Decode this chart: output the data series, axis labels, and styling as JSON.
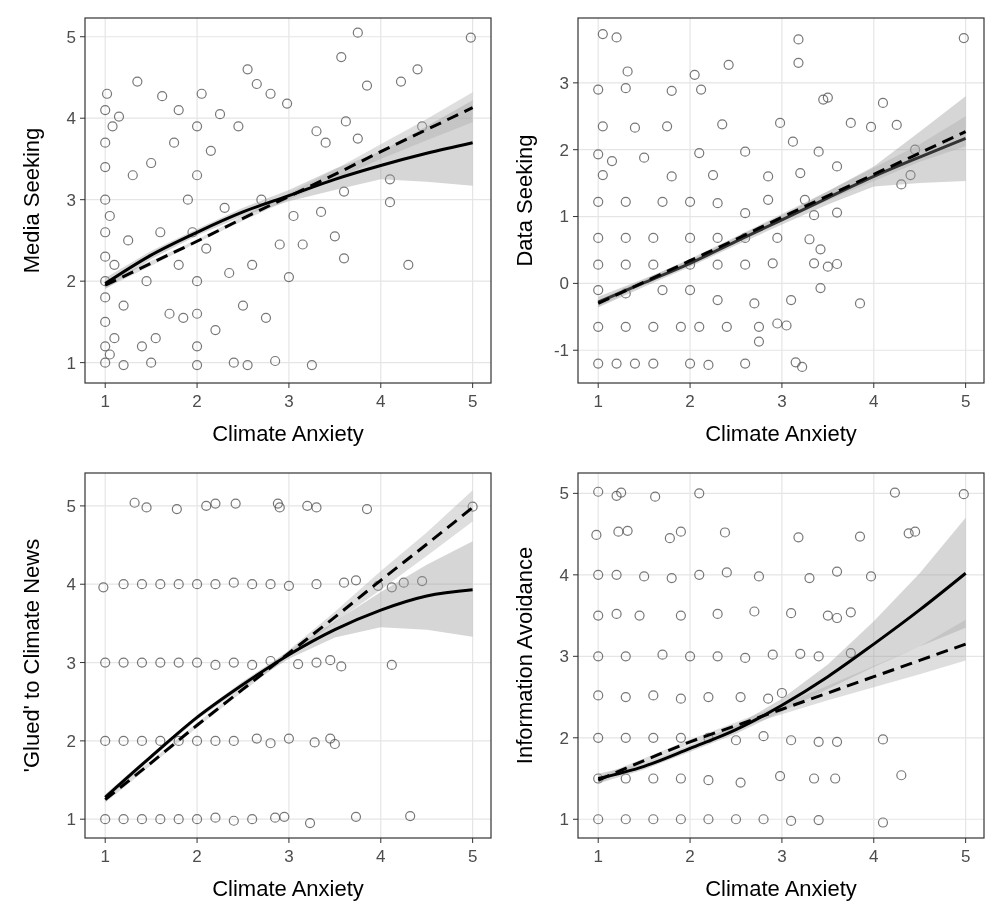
{
  "chart_data": [
    {
      "type": "scatter",
      "xlabel": "Climate Anxiety",
      "ylabel": "Media Seeking",
      "xlim": [
        0.78,
        5.2
      ],
      "ylim": [
        0.75,
        5.23
      ],
      "xticks": [
        1,
        2,
        3,
        4,
        5
      ],
      "yticks": [
        1,
        2,
        3,
        4,
        5
      ],
      "grid": true,
      "series": [
        {
          "type": "scatter",
          "marker": "circle",
          "color": "#555555",
          "x": [
            1,
            1,
            1,
            1,
            1,
            1,
            1,
            1,
            1,
            1,
            1,
            1.02,
            1.05,
            1.05,
            1.08,
            1.1,
            1.1,
            1.15,
            1.2,
            1.2,
            1.25,
            1.3,
            1.35,
            1.4,
            1.45,
            1.5,
            1.5,
            1.55,
            1.6,
            1.62,
            1.7,
            1.75,
            1.8,
            1.8,
            1.85,
            1.9,
            1.95,
            2,
            2,
            2,
            2,
            2,
            2,
            2.05,
            2.1,
            2.15,
            2.2,
            2.25,
            2.3,
            2.35,
            2.4,
            2.45,
            2.5,
            2.55,
            2.55,
            2.6,
            2.65,
            2.7,
            2.75,
            2.8,
            2.85,
            2.9,
            2.98,
            3,
            3.05,
            3.15,
            3.25,
            3.3,
            3.35,
            3.4,
            3.5,
            3.57,
            3.6,
            3.6,
            3.62,
            3.75,
            3.75,
            3.85,
            4.1,
            4.1,
            4.22,
            4.3,
            4.4,
            4.45,
            4.98
          ],
          "values": [
            1,
            1.2,
            1.5,
            1.8,
            2,
            2.3,
            2.6,
            3,
            3.4,
            3.7,
            4.1,
            4.3,
            1.1,
            2.8,
            3.9,
            1.3,
            2.2,
            4.02,
            0.97,
            1.7,
            2.5,
            3.3,
            4.45,
            1.2,
            2,
            1,
            3.45,
            1.3,
            2.6,
            4.27,
            1.6,
            3.7,
            2.2,
            4.1,
            1.55,
            3,
            2.6,
            0.97,
            1.2,
            1.6,
            2,
            3.3,
            3.9,
            4.3,
            2.4,
            3.6,
            1.4,
            4.05,
            2.9,
            2.1,
            1,
            3.9,
            1.7,
            4.6,
            0.97,
            2.2,
            4.42,
            3,
            1.55,
            4.3,
            1.02,
            2.45,
            4.18,
            2.05,
            2.8,
            2.45,
            0.97,
            3.84,
            2.85,
            3.7,
            2.55,
            4.75,
            2.28,
            3.1,
            3.96,
            5.05,
            3.75,
            4.4,
            3.25,
            2.97,
            4.45,
            2.2,
            4.6,
            3.9,
            4.99
          ]
        },
        {
          "type": "line",
          "marker": "none",
          "line_style": "solid",
          "color": "#000000",
          "x": [
            1,
            1.5,
            2,
            2.5,
            3,
            3.5,
            4,
            4.5,
            5
          ],
          "values": [
            1.97,
            2.32,
            2.6,
            2.85,
            3.05,
            3.25,
            3.42,
            3.57,
            3.7
          ],
          "lower": [
            1.9,
            2.27,
            2.56,
            2.8,
            2.98,
            3.12,
            3.25,
            3.22,
            3.17
          ],
          "upper": [
            2.04,
            2.37,
            2.64,
            2.9,
            3.12,
            3.38,
            3.59,
            3.9,
            4.22
          ]
        },
        {
          "type": "line",
          "marker": "none",
          "line_style": "dashed",
          "color": "#000000",
          "x": [
            1,
            1.5,
            2,
            2.5,
            3,
            3.5,
            4,
            4.5,
            5
          ],
          "values": [
            1.95,
            2.22,
            2.49,
            2.77,
            3.04,
            3.31,
            3.59,
            3.86,
            4.13
          ],
          "lower": [
            1.91,
            2.19,
            2.47,
            2.74,
            3,
            3.25,
            3.5,
            3.73,
            3.95
          ],
          "upper": [
            1.99,
            2.25,
            2.51,
            2.8,
            3.08,
            3.37,
            3.68,
            3.99,
            4.32
          ]
        }
      ]
    },
    {
      "type": "scatter",
      "xlabel": "Climate Anxiety",
      "ylabel": "Data Seeking",
      "xlim": [
        0.78,
        5.2
      ],
      "ylim": [
        -1.49,
        3.97
      ],
      "xticks": [
        1,
        2,
        3,
        4,
        5
      ],
      "yticks": [
        -1,
        0,
        1,
        2,
        3
      ],
      "grid": true,
      "series": [
        {
          "type": "scatter",
          "marker": "circle",
          "color": "#555555",
          "x": [
            1,
            1.2,
            1.4,
            1.6,
            2,
            2.2,
            2.6,
            3.15,
            3.22,
            1,
            1.3,
            1.6,
            1.9,
            2.1,
            2.4,
            2.75,
            2.95,
            3.05,
            2.75,
            1,
            1.3,
            1.7,
            2,
            2.3,
            2.7,
            3.1,
            3.42,
            3.85,
            1,
            1.3,
            1.6,
            2,
            2.3,
            2.6,
            2.9,
            3.35,
            3.5,
            3.6,
            1,
            1.3,
            1.6,
            2,
            2.3,
            2.6,
            2.95,
            3.3,
            3.42,
            1,
            1.3,
            1.7,
            2,
            2.3,
            2.6,
            2.85,
            3.25,
            3.35,
            3.6,
            1,
            1.05,
            1.05,
            1.15,
            1.4,
            1.5,
            1.75,
            1.8,
            2.1,
            2.25,
            2.35,
            2.6,
            2.85,
            2.98,
            3.12,
            3.2,
            3.4,
            3.6,
            3.75,
            3.97,
            4.25,
            4.3,
            4.45,
            4.4,
            4.1,
            1,
            1.05,
            1.2,
            1.32,
            1.3,
            1.8,
            2.05,
            2.12,
            2.42,
            3.18,
            3.18,
            3.45,
            3.5,
            4.98
          ],
          "values": [
            -1.2,
            -1.2,
            -1.2,
            -1.2,
            -1.2,
            -1.22,
            -1.2,
            -1.18,
            -1.25,
            -0.65,
            -0.65,
            -0.65,
            -0.65,
            -0.65,
            -0.65,
            -0.65,
            -0.6,
            -0.63,
            -0.87,
            -0.1,
            -0.15,
            -0.1,
            -0.1,
            -0.25,
            -0.3,
            -0.25,
            -0.07,
            -0.3,
            0.28,
            0.28,
            0.28,
            0.28,
            0.28,
            0.28,
            0.3,
            0.3,
            0.25,
            0.29,
            0.68,
            0.68,
            0.68,
            0.68,
            0.68,
            0.68,
            0.68,
            0.66,
            0.51,
            1.22,
            1.22,
            1.22,
            1.22,
            1.2,
            1.05,
            1.25,
            1.25,
            1.02,
            1.06,
            1.93,
            2.35,
            1.62,
            1.83,
            2.33,
            1.88,
            2.35,
            1.6,
            1.95,
            1.62,
            2.38,
            1.97,
            1.6,
            2.4,
            2.12,
            1.65,
            1.97,
            1.75,
            2.4,
            2.34,
            2.37,
            1.48,
            2,
            1.62,
            2.7,
            2.9,
            3.73,
            3.68,
            3.17,
            2.92,
            2.88,
            3.12,
            2.9,
            3.27,
            3.65,
            3.3,
            2.75,
            2.78,
            3.67
          ]
        },
        {
          "type": "line",
          "marker": "none",
          "line_style": "solid",
          "color": "#333333",
          "x": [
            1,
            1.5,
            2,
            2.5,
            3,
            3.5,
            4,
            4.5,
            5
          ],
          "values": [
            -0.28,
            0.01,
            0.3,
            0.63,
            0.95,
            1.28,
            1.6,
            1.89,
            2.17
          ],
          "lower": [
            -0.36,
            -0.05,
            0.25,
            0.57,
            0.88,
            1.18,
            1.45,
            1.5,
            1.53
          ],
          "upper": [
            -0.2,
            0.07,
            0.35,
            0.69,
            1.02,
            1.38,
            1.75,
            2.27,
            2.8
          ]
        },
        {
          "type": "line",
          "marker": "none",
          "line_style": "dashed",
          "color": "#000000",
          "x": [
            1,
            1.5,
            2,
            2.5,
            3,
            3.5,
            4,
            4.5,
            5
          ],
          "values": [
            -0.3,
            0.02,
            0.34,
            0.66,
            0.99,
            1.31,
            1.63,
            1.95,
            2.27
          ],
          "lower": [
            -0.35,
            -0.02,
            0.31,
            0.62,
            0.94,
            1.24,
            1.53,
            1.82,
            2.05
          ],
          "upper": [
            -0.25,
            0.06,
            0.37,
            0.7,
            1.04,
            1.38,
            1.73,
            2.08,
            2.5
          ]
        }
      ]
    },
    {
      "type": "scatter",
      "xlabel": "Climate Anxiety",
      "ylabel": "'Glued' to Climate News",
      "xlim": [
        0.78,
        5.2
      ],
      "ylim": [
        0.76,
        5.42
      ],
      "xticks": [
        1,
        2,
        3,
        4,
        5
      ],
      "yticks": [
        1,
        2,
        3,
        4,
        5
      ],
      "grid": true,
      "series": [
        {
          "type": "scatter",
          "marker": "circle",
          "color": "#555555",
          "x": [
            1,
            1.2,
            1.4,
            1.6,
            1.8,
            2,
            2.2,
            2.4,
            2.6,
            2.85,
            2.95,
            3.23,
            3.73,
            4.32,
            1,
            1.2,
            1.4,
            1.6,
            1.8,
            2,
            2.2,
            2.4,
            2.65,
            2.8,
            3,
            3.28,
            3.45,
            3.5,
            1,
            1.2,
            1.4,
            1.6,
            1.8,
            2,
            2.2,
            2.4,
            2.6,
            2.8,
            3.1,
            3.3,
            3.45,
            3.57,
            4.12,
            0.98,
            1.2,
            1.4,
            1.6,
            1.8,
            2,
            2.2,
            2.4,
            2.6,
            2.8,
            3,
            3.3,
            3.6,
            3.73,
            3.97,
            4.12,
            4.25,
            4.45,
            1.32,
            1.45,
            1.78,
            2.1,
            2.2,
            2.42,
            2.88,
            2.9,
            3.2,
            3.3,
            3.85,
            5
          ],
          "values": [
            1,
            1,
            1,
            1,
            1,
            1,
            1.02,
            0.98,
            1,
            1.02,
            1.03,
            0.95,
            1.03,
            1.04,
            2,
            2,
            2,
            2,
            2,
            2,
            2,
            2,
            2.03,
            1.97,
            2.03,
            1.98,
            2.03,
            1.96,
            3,
            3,
            3,
            3,
            3,
            3,
            2.97,
            3,
            2.97,
            3.02,
            2.98,
            3,
            3.03,
            2.95,
            2.97,
            3.96,
            4,
            4,
            4,
            4,
            4,
            4,
            4.02,
            4,
            4,
            3.98,
            4,
            4.02,
            4.05,
            3.98,
            3.96,
            4.02,
            4.04,
            5.04,
            4.98,
            4.96,
            5,
            5.03,
            5.03,
            5.03,
            4.98,
            5,
            4.98,
            4.96,
            4.99
          ]
        },
        {
          "type": "line",
          "marker": "none",
          "line_style": "solid",
          "color": "#000000",
          "x": [
            1,
            1.5,
            2,
            2.5,
            3,
            3.5,
            4,
            4.5,
            5
          ],
          "values": [
            1.28,
            1.8,
            2.3,
            2.72,
            3.1,
            3.42,
            3.67,
            3.85,
            3.93
          ],
          "lower": [
            1.24,
            1.77,
            2.27,
            2.68,
            3.05,
            3.32,
            3.45,
            3.42,
            3.33
          ],
          "upper": [
            1.32,
            1.83,
            2.33,
            2.76,
            3.15,
            3.52,
            3.9,
            4.25,
            4.55
          ]
        },
        {
          "type": "line",
          "marker": "none",
          "line_style": "dashed",
          "color": "#000000",
          "x": [
            1,
            1.5,
            2,
            2.5,
            3,
            3.5,
            4,
            4.5,
            5
          ],
          "values": [
            1.25,
            1.72,
            2.2,
            2.66,
            3.12,
            3.58,
            4.05,
            4.51,
            4.98
          ],
          "lower": [
            1.21,
            1.69,
            2.17,
            2.63,
            3.08,
            3.51,
            3.93,
            4.36,
            4.8
          ],
          "upper": [
            1.29,
            1.75,
            2.23,
            2.69,
            3.16,
            3.65,
            4.17,
            4.66,
            5.2
          ]
        }
      ]
    },
    {
      "type": "scatter",
      "xlabel": "Climate Anxiety",
      "ylabel": "Information Avoidance",
      "xlim": [
        0.78,
        5.2
      ],
      "ylim": [
        0.77,
        5.25
      ],
      "xticks": [
        1,
        2,
        3,
        4,
        5
      ],
      "yticks": [
        1,
        2,
        3,
        4,
        5
      ],
      "grid": true,
      "series": [
        {
          "type": "scatter",
          "marker": "circle",
          "color": "#555555",
          "x": [
            1,
            1.3,
            1.6,
            1.9,
            2.2,
            2.5,
            2.8,
            3.1,
            3.4,
            4.1,
            1,
            1.3,
            1.6,
            1.9,
            2.2,
            2.55,
            2.98,
            3.35,
            3.58,
            4.3,
            1,
            1.3,
            1.6,
            1.9,
            2.2,
            2.5,
            2.8,
            3.1,
            3.4,
            3.6,
            4.1,
            1,
            1.3,
            1.6,
            1.9,
            2.2,
            2.55,
            2.85,
            3,
            1,
            1.3,
            1.7,
            2,
            2.3,
            2.6,
            2.9,
            3.2,
            3.4,
            3.75,
            1,
            1.2,
            1.45,
            1.9,
            2.3,
            2.7,
            3.1,
            3.5,
            3.6,
            3.75,
            1,
            1.2,
            1.5,
            1.8,
            2.1,
            2.4,
            2.75,
            3.3,
            3.6,
            3.97,
            0.98,
            1.22,
            1.32,
            1.78,
            1.9,
            2.38,
            3.18,
            3.85,
            4.38,
            4.45,
            1,
            1.2,
            1.25,
            1.62,
            2.1,
            4.23,
            4.98
          ],
          "values": [
            1,
            1,
            1,
            1,
            1,
            1,
            1,
            0.98,
            0.99,
            0.96,
            1.5,
            1.5,
            1.5,
            1.5,
            1.48,
            1.45,
            1.53,
            1.5,
            1.5,
            1.54,
            2,
            2,
            2,
            2,
            2,
            1.97,
            2.02,
            1.97,
            1.95,
            1.95,
            1.98,
            2.52,
            2.5,
            2.52,
            2.48,
            2.5,
            2.5,
            2.48,
            2.55,
            3,
            3,
            3.02,
            3,
            3,
            2.98,
            3.02,
            3.03,
            3,
            3.04,
            3.5,
            3.52,
            3.5,
            3.5,
            3.52,
            3.55,
            3.53,
            3.5,
            3.47,
            3.54,
            4,
            4,
            3.98,
            3.96,
            4,
            4.03,
            3.98,
            3.96,
            4.04,
            3.98,
            4.49,
            4.53,
            4.54,
            4.45,
            4.53,
            4.52,
            4.46,
            4.47,
            4.51,
            4.53,
            5.02,
            4.97,
            5.01,
            4.96,
            5,
            5.01,
            4.99
          ]
        },
        {
          "type": "line",
          "marker": "none",
          "line_style": "solid",
          "color": "#000000",
          "x": [
            1,
            1.5,
            2,
            2.5,
            3,
            3.5,
            4,
            4.5,
            5
          ],
          "values": [
            1.5,
            1.65,
            1.87,
            2.1,
            2.4,
            2.75,
            3.15,
            3.57,
            4.02
          ],
          "lower": [
            1.44,
            1.61,
            1.83,
            2.05,
            2.32,
            2.6,
            2.87,
            3.12,
            3.35
          ],
          "upper": [
            1.56,
            1.69,
            1.91,
            2.15,
            2.48,
            2.9,
            3.43,
            4.02,
            4.7
          ]
        },
        {
          "type": "line",
          "marker": "none",
          "line_style": "dashed",
          "color": "#000000",
          "x": [
            1,
            1.5,
            2,
            2.5,
            3,
            3.5,
            4,
            4.5,
            5
          ],
          "values": [
            1.48,
            1.72,
            1.95,
            2.15,
            2.35,
            2.55,
            2.75,
            2.95,
            3.15
          ],
          "lower": [
            1.44,
            1.69,
            1.92,
            2.11,
            2.29,
            2.46,
            2.62,
            2.78,
            2.95
          ],
          "upper": [
            1.52,
            1.75,
            1.98,
            2.19,
            2.41,
            2.64,
            2.88,
            3.12,
            3.45
          ]
        }
      ]
    }
  ]
}
